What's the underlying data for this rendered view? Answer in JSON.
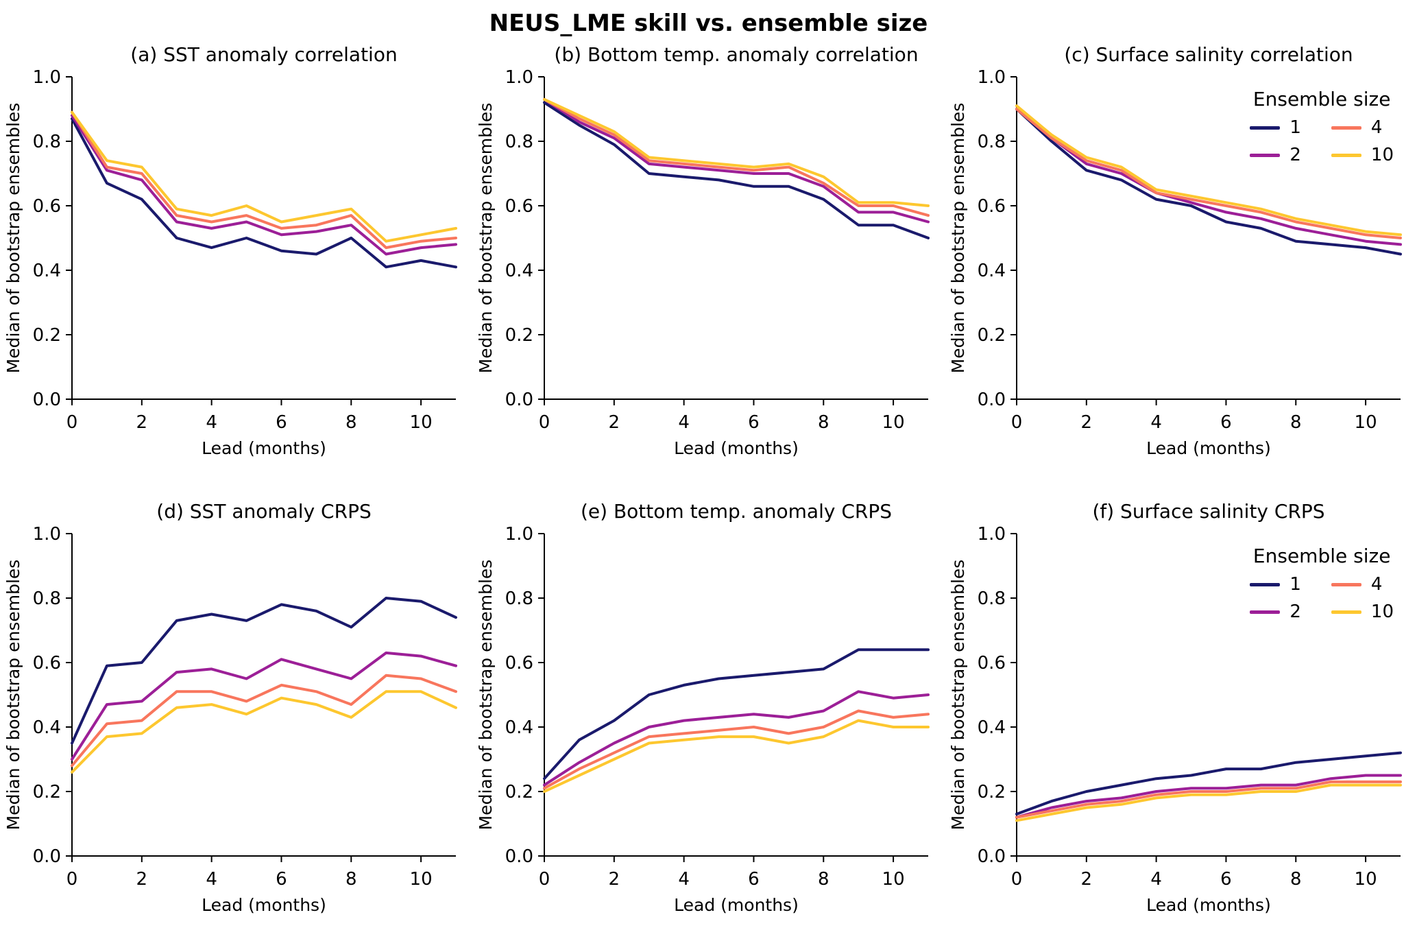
{
  "figure_title": "NEUS_LME skill vs. ensemble size",
  "legend": {
    "title": "Ensemble size",
    "entries": [
      {
        "label": "1",
        "color": "#1a1a6c"
      },
      {
        "label": "2",
        "color": "#9c1f97"
      },
      {
        "label": "4",
        "color": "#f8765d"
      },
      {
        "label": "10",
        "color": "#fdc72f"
      }
    ]
  },
  "axes": {
    "xlim": [
      0,
      11
    ],
    "ylim": [
      0.0,
      1.0
    ],
    "xticks": [
      0,
      2,
      4,
      6,
      8,
      10
    ],
    "yticks": [
      "0.0",
      "0.2",
      "0.4",
      "0.6",
      "0.8",
      "1.0"
    ],
    "grid": "off",
    "spines": "left-bottom-only"
  },
  "chart_data": [
    {
      "type": "line",
      "title": "(a) SST anomaly correlation",
      "xlabel": "Lead (months)",
      "ylabel": "Median of bootstrap ensembles",
      "xlim": [
        0,
        11
      ],
      "ylim": [
        0.0,
        1.0
      ],
      "legend": false,
      "x": [
        0,
        1,
        2,
        3,
        4,
        5,
        6,
        7,
        8,
        9,
        10,
        11
      ],
      "series": [
        {
          "name": "1",
          "color": "#1a1a6c",
          "values": [
            0.87,
            0.67,
            0.62,
            0.5,
            0.47,
            0.5,
            0.46,
            0.45,
            0.5,
            0.41,
            0.43,
            0.41
          ]
        },
        {
          "name": "2",
          "color": "#9c1f97",
          "values": [
            0.88,
            0.71,
            0.68,
            0.55,
            0.53,
            0.55,
            0.51,
            0.52,
            0.54,
            0.45,
            0.47,
            0.48
          ]
        },
        {
          "name": "4",
          "color": "#f8765d",
          "values": [
            0.89,
            0.72,
            0.7,
            0.57,
            0.55,
            0.57,
            0.53,
            0.54,
            0.57,
            0.47,
            0.49,
            0.5
          ]
        },
        {
          "name": "10",
          "color": "#fdc72f",
          "values": [
            0.89,
            0.74,
            0.72,
            0.59,
            0.57,
            0.6,
            0.55,
            0.57,
            0.59,
            0.49,
            0.51,
            0.53
          ]
        }
      ]
    },
    {
      "type": "line",
      "title": "(b) Bottom temp. anomaly correlation",
      "xlabel": "Lead (months)",
      "ylabel": "Median of bootstrap ensembles",
      "xlim": [
        0,
        11
      ],
      "ylim": [
        0.0,
        1.0
      ],
      "legend": false,
      "x": [
        0,
        1,
        2,
        3,
        4,
        5,
        6,
        7,
        8,
        9,
        10,
        11
      ],
      "series": [
        {
          "name": "1",
          "color": "#1a1a6c",
          "values": [
            0.92,
            0.85,
            0.79,
            0.7,
            0.69,
            0.68,
            0.66,
            0.66,
            0.62,
            0.54,
            0.54,
            0.5
          ]
        },
        {
          "name": "2",
          "color": "#9c1f97",
          "values": [
            0.93,
            0.86,
            0.81,
            0.73,
            0.72,
            0.71,
            0.7,
            0.7,
            0.66,
            0.58,
            0.58,
            0.55
          ]
        },
        {
          "name": "4",
          "color": "#f8765d",
          "values": [
            0.93,
            0.87,
            0.82,
            0.74,
            0.73,
            0.72,
            0.71,
            0.72,
            0.67,
            0.6,
            0.6,
            0.57
          ]
        },
        {
          "name": "10",
          "color": "#fdc72f",
          "values": [
            0.93,
            0.88,
            0.83,
            0.75,
            0.74,
            0.73,
            0.72,
            0.73,
            0.69,
            0.61,
            0.61,
            0.6
          ]
        }
      ]
    },
    {
      "type": "line",
      "title": "(c) Surface salinity correlation",
      "xlabel": "Lead (months)",
      "ylabel": "Median of bootstrap ensembles",
      "xlim": [
        0,
        11
      ],
      "ylim": [
        0.0,
        1.0
      ],
      "legend": true,
      "x": [
        0,
        1,
        2,
        3,
        4,
        5,
        6,
        7,
        8,
        9,
        10,
        11
      ],
      "series": [
        {
          "name": "1",
          "color": "#1a1a6c",
          "values": [
            0.9,
            0.8,
            0.71,
            0.68,
            0.62,
            0.6,
            0.55,
            0.53,
            0.49,
            0.48,
            0.47,
            0.45
          ]
        },
        {
          "name": "2",
          "color": "#9c1f97",
          "values": [
            0.9,
            0.81,
            0.73,
            0.7,
            0.64,
            0.61,
            0.58,
            0.56,
            0.53,
            0.51,
            0.49,
            0.48
          ]
        },
        {
          "name": "4",
          "color": "#f8765d",
          "values": [
            0.9,
            0.81,
            0.74,
            0.71,
            0.64,
            0.62,
            0.6,
            0.58,
            0.55,
            0.53,
            0.51,
            0.5
          ]
        },
        {
          "name": "10",
          "color": "#fdc72f",
          "values": [
            0.91,
            0.82,
            0.75,
            0.72,
            0.65,
            0.63,
            0.61,
            0.59,
            0.56,
            0.54,
            0.52,
            0.51
          ]
        }
      ]
    },
    {
      "type": "line",
      "title": "(d) SST anomaly CRPS",
      "xlabel": "Lead (months)",
      "ylabel": "Median of bootstrap ensembles",
      "xlim": [
        0,
        11
      ],
      "ylim": [
        0.0,
        1.0
      ],
      "legend": false,
      "x": [
        0,
        1,
        2,
        3,
        4,
        5,
        6,
        7,
        8,
        9,
        10,
        11
      ],
      "series": [
        {
          "name": "1",
          "color": "#1a1a6c",
          "values": [
            0.35,
            0.59,
            0.6,
            0.73,
            0.75,
            0.73,
            0.78,
            0.76,
            0.71,
            0.8,
            0.79,
            0.74
          ]
        },
        {
          "name": "2",
          "color": "#9c1f97",
          "values": [
            0.3,
            0.47,
            0.48,
            0.57,
            0.58,
            0.55,
            0.61,
            0.58,
            0.55,
            0.63,
            0.62,
            0.59
          ]
        },
        {
          "name": "4",
          "color": "#f8765d",
          "values": [
            0.28,
            0.41,
            0.42,
            0.51,
            0.51,
            0.48,
            0.53,
            0.51,
            0.47,
            0.56,
            0.55,
            0.51
          ]
        },
        {
          "name": "10",
          "color": "#fdc72f",
          "values": [
            0.26,
            0.37,
            0.38,
            0.46,
            0.47,
            0.44,
            0.49,
            0.47,
            0.43,
            0.51,
            0.51,
            0.46
          ]
        }
      ]
    },
    {
      "type": "line",
      "title": "(e) Bottom temp. anomaly CRPS",
      "xlabel": "Lead (months)",
      "ylabel": "Median of bootstrap ensembles",
      "xlim": [
        0,
        11
      ],
      "ylim": [
        0.0,
        1.0
      ],
      "legend": false,
      "x": [
        0,
        1,
        2,
        3,
        4,
        5,
        6,
        7,
        8,
        9,
        10,
        11
      ],
      "series": [
        {
          "name": "1",
          "color": "#1a1a6c",
          "values": [
            0.24,
            0.36,
            0.42,
            0.5,
            0.53,
            0.55,
            0.56,
            0.57,
            0.58,
            0.64,
            0.64,
            0.64
          ]
        },
        {
          "name": "2",
          "color": "#9c1f97",
          "values": [
            0.22,
            0.29,
            0.35,
            0.4,
            0.42,
            0.43,
            0.44,
            0.43,
            0.45,
            0.51,
            0.49,
            0.5
          ]
        },
        {
          "name": "4",
          "color": "#f8765d",
          "values": [
            0.21,
            0.27,
            0.32,
            0.37,
            0.38,
            0.39,
            0.4,
            0.38,
            0.4,
            0.45,
            0.43,
            0.44
          ]
        },
        {
          "name": "10",
          "color": "#fdc72f",
          "values": [
            0.2,
            0.25,
            0.3,
            0.35,
            0.36,
            0.37,
            0.37,
            0.35,
            0.37,
            0.42,
            0.4,
            0.4
          ]
        }
      ]
    },
    {
      "type": "line",
      "title": "(f) Surface salinity CRPS",
      "xlabel": "Lead (months)",
      "ylabel": "Median of bootstrap ensembles",
      "xlim": [
        0,
        11
      ],
      "ylim": [
        0.0,
        1.0
      ],
      "legend": true,
      "x": [
        0,
        1,
        2,
        3,
        4,
        5,
        6,
        7,
        8,
        9,
        10,
        11
      ],
      "series": [
        {
          "name": "1",
          "color": "#1a1a6c",
          "values": [
            0.13,
            0.17,
            0.2,
            0.22,
            0.24,
            0.25,
            0.27,
            0.27,
            0.29,
            0.3,
            0.31,
            0.32
          ]
        },
        {
          "name": "2",
          "color": "#9c1f97",
          "values": [
            0.12,
            0.15,
            0.17,
            0.18,
            0.2,
            0.21,
            0.21,
            0.22,
            0.22,
            0.24,
            0.25,
            0.25
          ]
        },
        {
          "name": "4",
          "color": "#f8765d",
          "values": [
            0.12,
            0.14,
            0.16,
            0.17,
            0.19,
            0.2,
            0.2,
            0.21,
            0.21,
            0.23,
            0.23,
            0.23
          ]
        },
        {
          "name": "10",
          "color": "#fdc72f",
          "values": [
            0.11,
            0.13,
            0.15,
            0.16,
            0.18,
            0.19,
            0.19,
            0.2,
            0.2,
            0.22,
            0.22,
            0.22
          ]
        }
      ]
    }
  ]
}
